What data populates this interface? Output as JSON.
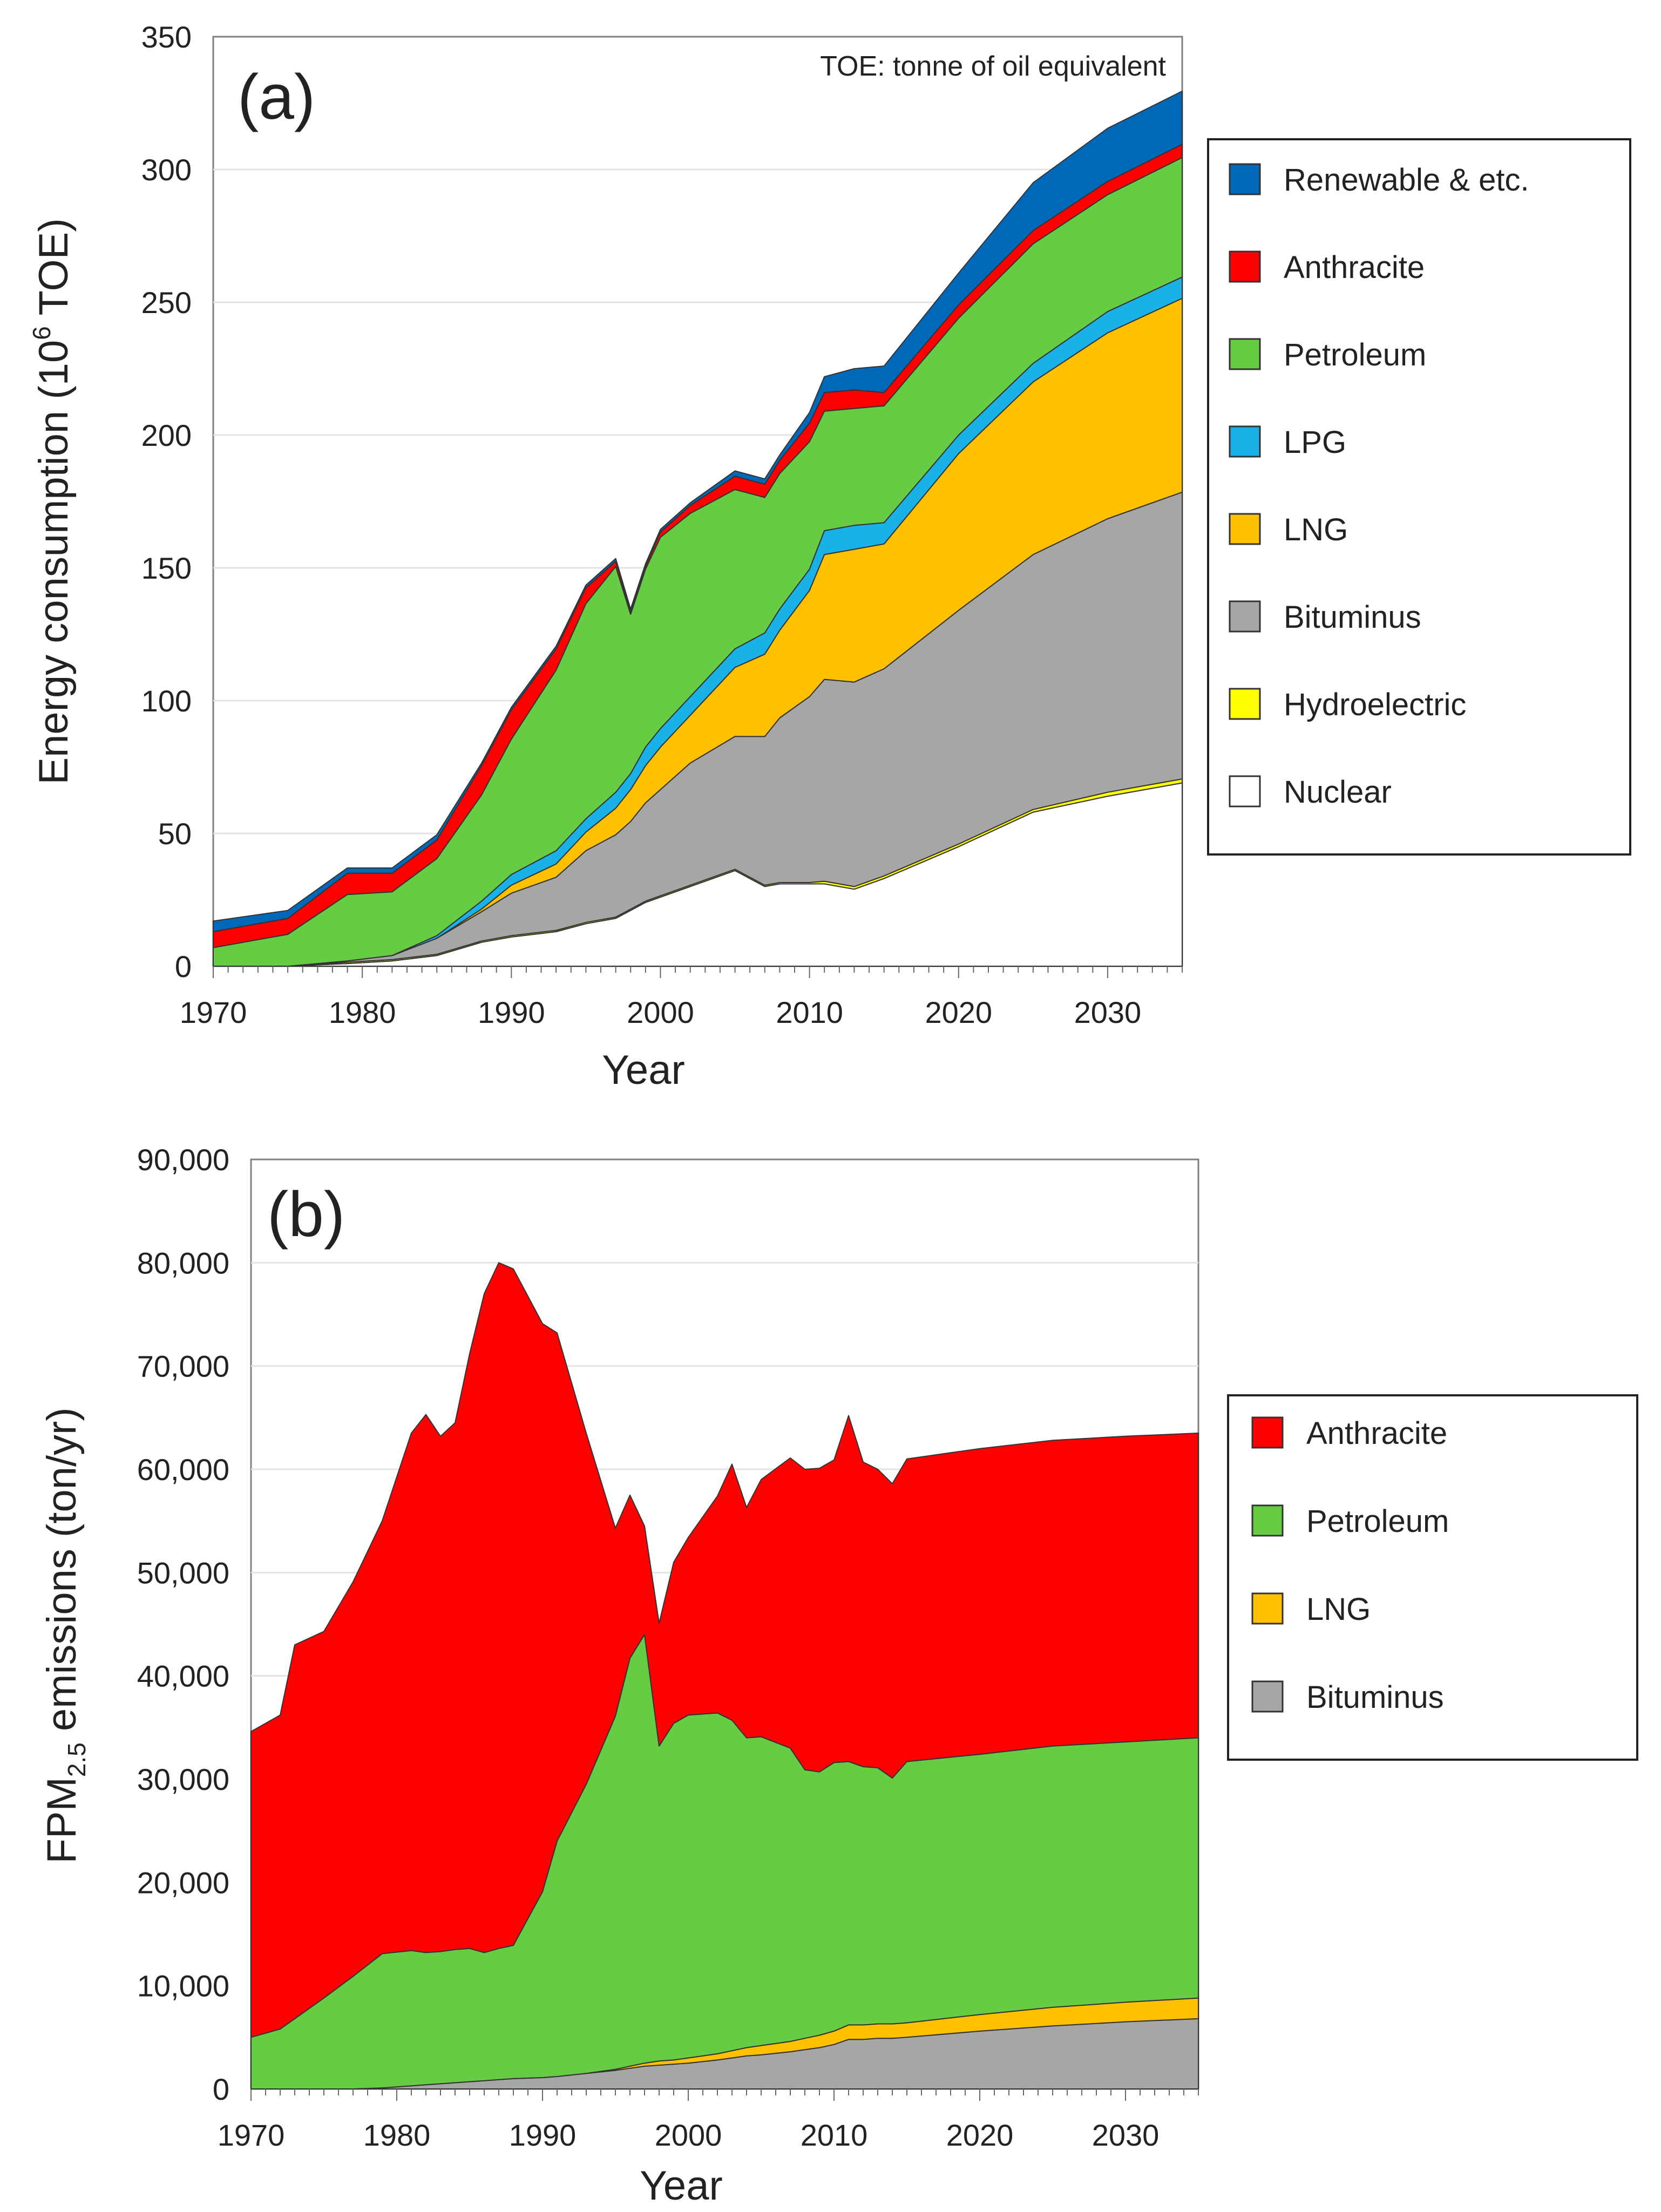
{
  "colors": {
    "nuclear": "#ffffff",
    "hydro": "#ffff00",
    "bituminus": "#a6a6a6",
    "lng": "#ffc000",
    "lpg": "#1ab0e8",
    "petroleum": "#66cc44",
    "anthracite": "#ff0000",
    "renewable": "#0068b8"
  },
  "chart_data": [
    {
      "type": "area",
      "stacked": true,
      "panel_label": "(a)",
      "note": "TOE: tonne of oil equivalent",
      "xlabel": "Year",
      "ylabel_main": "Energy consumption (10",
      "ylabel_sup": "6",
      "ylabel_tail": " TOE)",
      "xlim": [
        1970,
        2035
      ],
      "ylim": [
        0,
        350
      ],
      "x_ticks": [
        1970,
        1980,
        1990,
        2000,
        2010,
        2020,
        2030
      ],
      "x_tick_labels": [
        "1970",
        "1980",
        "1990",
        "2000",
        "2010",
        "2020",
        "2030"
      ],
      "y_ticks": [
        0,
        50,
        100,
        150,
        200,
        250,
        300,
        350
      ],
      "y_tick_labels": [
        "0",
        "50",
        "100",
        "150",
        "200",
        "250",
        "300",
        "350"
      ],
      "legend_position": "right",
      "legend": [
        {
          "label": "Renewable & etc.",
          "key": "renewable"
        },
        {
          "label": "Anthracite",
          "key": "anthracite"
        },
        {
          "label": "Petroleum",
          "key": "petroleum"
        },
        {
          "label": "LPG",
          "key": "lpg"
        },
        {
          "label": "LNG",
          "key": "lng"
        },
        {
          "label": "Bituminus",
          "key": "bituminus"
        },
        {
          "label": "Hydroelectric",
          "key": "hydro"
        },
        {
          "label": "Nuclear",
          "key": "nuclear"
        }
      ],
      "x": [
        1970,
        1975,
        1979,
        1982,
        1985,
        1988,
        1990,
        1993,
        1995,
        1997,
        1998,
        1999,
        2000,
        2002,
        2005,
        2007,
        2008,
        2010,
        2011,
        2013,
        2015,
        2020,
        2025,
        2030,
        2035
      ],
      "series": [
        {
          "name": "Nuclear",
          "key": "nuclear",
          "values": [
            0,
            0,
            1,
            2,
            4,
            9,
            11,
            13,
            16,
            18,
            21,
            24,
            26,
            30,
            36,
            30,
            31,
            31,
            31,
            29,
            33,
            45,
            58,
            64,
            69
          ]
        },
        {
          "name": "Hydroelectric",
          "key": "hydro",
          "values": [
            0,
            0,
            0.5,
            0.5,
            0.5,
            0.5,
            0.5,
            0.5,
            0.5,
            0.5,
            0.5,
            0.5,
            0.5,
            0.5,
            0.5,
            0.5,
            0.5,
            0.5,
            1,
            1,
            1,
            1,
            1,
            1.5,
            1.5
          ]
        },
        {
          "name": "Bituminus",
          "key": "bituminus",
          "values": [
            0,
            0,
            0.5,
            1.5,
            6,
            11,
            16,
            20,
            27,
            31,
            33,
            37,
            40,
            46,
            50,
            56,
            62,
            70,
            76,
            77,
            78,
            88,
            96,
            103,
            108
          ]
        },
        {
          "name": "LNG",
          "key": "lng",
          "values": [
            0,
            0,
            0,
            0,
            0,
            1,
            3,
            5,
            7,
            10,
            12,
            14,
            16,
            18,
            26,
            31,
            33,
            40,
            47,
            50,
            47,
            59,
            65,
            70,
            73
          ]
        },
        {
          "name": "LPG",
          "key": "lpg",
          "values": [
            0,
            0,
            0,
            0,
            1,
            3,
            4,
            5,
            5,
            6,
            6,
            7,
            7,
            7,
            7,
            8,
            8,
            8,
            9,
            9,
            8,
            7,
            7,
            8,
            8
          ]
        },
        {
          "name": "Petroleum",
          "key": "petroleum",
          "values": [
            7,
            12,
            25,
            24,
            29,
            40,
            51,
            68,
            81,
            85,
            60,
            67,
            72,
            69,
            60,
            51,
            51,
            48,
            45,
            44,
            44,
            44,
            45,
            44,
            45
          ]
        },
        {
          "name": "Anthracite",
          "key": "anthracite",
          "values": [
            6,
            6,
            8,
            7,
            7,
            11,
            11,
            8,
            6,
            2,
            1,
            1,
            2,
            3,
            5,
            5,
            5,
            7,
            7,
            7,
            5,
            5,
            5,
            5,
            5
          ]
        },
        {
          "name": "Renewable & etc.",
          "key": "renewable",
          "values": [
            4,
            3,
            2,
            2,
            2,
            1,
            1,
            1,
            1,
            1,
            1,
            1,
            1,
            1,
            2,
            2,
            2,
            4,
            6,
            8,
            10,
            12,
            18,
            20,
            20
          ]
        }
      ]
    },
    {
      "type": "area",
      "stacked": true,
      "panel_label": "(b)",
      "xlabel": "Year",
      "ylabel_main": "FPM",
      "ylabel_sub": "2.5",
      "ylabel_tail": " emissions (ton/yr)",
      "xlim": [
        1970,
        2035
      ],
      "ylim": [
        0,
        90000
      ],
      "x_ticks": [
        1970,
        1980,
        1990,
        2000,
        2010,
        2020,
        2030
      ],
      "x_tick_labels": [
        "1970",
        "1980",
        "1990",
        "2000",
        "2010",
        "2020",
        "2030"
      ],
      "y_ticks": [
        0,
        10000,
        20000,
        30000,
        40000,
        50000,
        60000,
        70000,
        80000,
        90000
      ],
      "y_tick_labels": [
        "0",
        "10,000",
        "20,000",
        "30,000",
        "40,000",
        "50,000",
        "60,000",
        "70,000",
        "80,000",
        "90,000"
      ],
      "legend_position": "right",
      "legend": [
        {
          "label": "Anthracite",
          "key": "anthracite"
        },
        {
          "label": "Petroleum",
          "key": "petroleum"
        },
        {
          "label": "LNG",
          "key": "lng"
        },
        {
          "label": "Bituminus",
          "key": "bituminus"
        }
      ],
      "x": [
        1970,
        1972,
        1973,
        1975,
        1977,
        1979,
        1981,
        1982,
        1983,
        1984,
        1985,
        1986,
        1987,
        1988,
        1990,
        1991,
        1993,
        1995,
        1996,
        1997,
        1998,
        1999,
        2000,
        2002,
        2003,
        2004,
        2005,
        2007,
        2008,
        2009,
        2010,
        2011,
        2012,
        2013,
        2014,
        2015,
        2020,
        2025,
        2030,
        2035
      ],
      "series": [
        {
          "name": "Bituminus",
          "key": "bituminus",
          "values": [
            0,
            0,
            0,
            0,
            0,
            100,
            300,
            400,
            500,
            600,
            700,
            800,
            900,
            1000,
            1100,
            1200,
            1500,
            1800,
            2000,
            2200,
            2300,
            2400,
            2500,
            2800,
            3000,
            3200,
            3300,
            3600,
            3800,
            4000,
            4300,
            4800,
            4800,
            4900,
            4900,
            5000,
            5600,
            6100,
            6500,
            6800
          ]
        },
        {
          "name": "LNG",
          "key": "lng",
          "values": [
            0,
            0,
            0,
            0,
            0,
            0,
            0,
            0,
            0,
            0,
            0,
            0,
            0,
            0,
            0,
            0,
            0,
            100,
            200,
            300,
            400,
            400,
            500,
            600,
            700,
            800,
            900,
            1000,
            1100,
            1200,
            1300,
            1400,
            1400,
            1400,
            1400,
            1400,
            1600,
            1800,
            1900,
            2000
          ]
        },
        {
          "name": "Petroleum",
          "key": "petroleum",
          "values": [
            5000,
            5800,
            6800,
            8800,
            10900,
            13000,
            13100,
            12800,
            12800,
            12900,
            12900,
            12400,
            12700,
            12900,
            18000,
            22800,
            28000,
            34200,
            39500,
            41500,
            30500,
            32600,
            33200,
            33000,
            32000,
            30000,
            29900,
            28400,
            26000,
            25500,
            26000,
            25500,
            25000,
            24800,
            23800,
            25300,
            25200,
            25300,
            25200,
            25200
          ]
        },
        {
          "name": "Anthracite",
          "key": "anthracite",
          "values": [
            29600,
            30400,
            36200,
            35500,
            38200,
            41900,
            50100,
            52100,
            49900,
            51000,
            57600,
            63800,
            66400,
            65500,
            55000,
            49200,
            34000,
            18200,
            15800,
            10500,
            11900,
            15600,
            17200,
            21000,
            24800,
            22300,
            24900,
            28100,
            29100,
            29400,
            29300,
            33500,
            29500,
            28900,
            28500,
            29300,
            29600,
            29600,
            29600,
            29500
          ]
        }
      ]
    }
  ]
}
